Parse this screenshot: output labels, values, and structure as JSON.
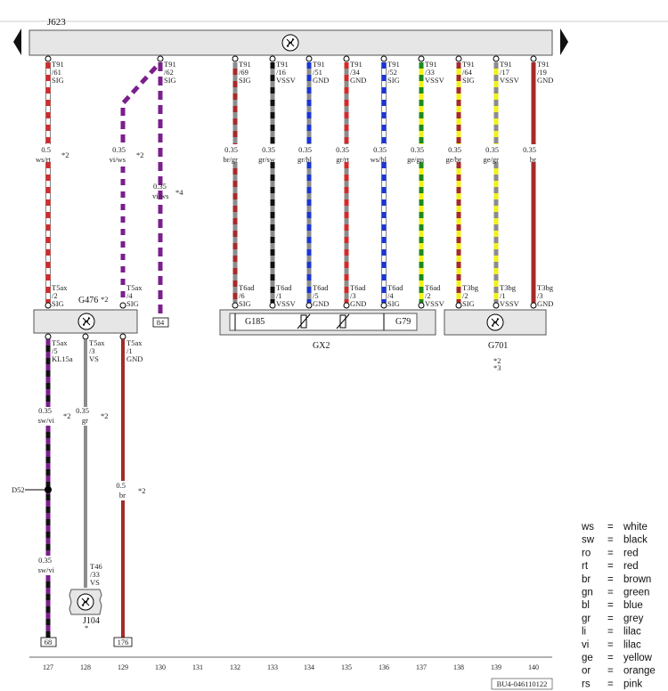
{
  "control_unit": {
    "label": "J623"
  },
  "columns": [
    "127",
    "128",
    "129",
    "130",
    "131",
    "132",
    "133",
    "134",
    "135",
    "136",
    "137",
    "138",
    "139",
    "140"
  ],
  "pins": [
    {
      "col": "127",
      "conn": "T91",
      "pin": "/61",
      "sig": "SIG"
    },
    {
      "col": "130",
      "conn": "T91",
      "pin": "/62",
      "sig": "SIG"
    },
    {
      "col": "132",
      "conn": "T91",
      "pin": "/69",
      "sig": "SIG"
    },
    {
      "col": "133",
      "conn": "T91",
      "pin": "/16",
      "sig": "VSSV"
    },
    {
      "col": "134",
      "conn": "T91",
      "pin": "/51",
      "sig": "GND"
    },
    {
      "col": "135",
      "conn": "T91",
      "pin": "/34",
      "sig": "GND"
    },
    {
      "col": "136",
      "conn": "T91",
      "pin": "/52",
      "sig": "SIG"
    },
    {
      "col": "137",
      "conn": "T91",
      "pin": "/33",
      "sig": "VSSV"
    },
    {
      "col": "138",
      "conn": "T91",
      "pin": "/64",
      "sig": "SIG"
    },
    {
      "col": "139",
      "conn": "T91",
      "pin": "/17",
      "sig": "VSSV"
    },
    {
      "col": "140",
      "conn": "T91",
      "pin": "/19",
      "sig": "GND"
    }
  ],
  "upper_wires": [
    {
      "col": "127",
      "size": "0.5",
      "color": "ws/rt",
      "note": "*2"
    },
    {
      "col": "129",
      "size": "0.35",
      "color": "vi/ws",
      "note": "*2"
    },
    {
      "col": "132",
      "size": "0.35",
      "color": "br/gr",
      "note": ""
    },
    {
      "col": "133",
      "size": "0.35",
      "color": "gr/sw",
      "note": ""
    },
    {
      "col": "134",
      "size": "0.35",
      "color": "gr/bl",
      "note": ""
    },
    {
      "col": "135",
      "size": "0.35",
      "color": "gr/rt",
      "note": ""
    },
    {
      "col": "136",
      "size": "0.35",
      "color": "ws/bl",
      "note": ""
    },
    {
      "col": "137",
      "size": "0.35",
      "color": "ge/gn",
      "note": ""
    },
    {
      "col": "138",
      "size": "0.35",
      "color": "ge/br",
      "note": ""
    },
    {
      "col": "139",
      "size": "0.35",
      "color": "ge/gr",
      "note": ""
    },
    {
      "col": "140",
      "size": "0.35",
      "color": "br",
      "note": ""
    }
  ],
  "dashed_wire": {
    "size": "0.35",
    "color": "vi/ws",
    "note": "*4",
    "terminal": "84"
  },
  "sensor_pins": [
    {
      "col": "127",
      "conn": "T5ax",
      "pin": "/2",
      "sig": "SIG"
    },
    {
      "col": "129",
      "conn": "T5ax",
      "pin": "/4",
      "sig": "SIG"
    },
    {
      "col": "132",
      "conn": "T6ad",
      "pin": "/6",
      "sig": "SIG"
    },
    {
      "col": "133",
      "conn": "T6ad",
      "pin": "/1",
      "sig": "VSSV"
    },
    {
      "col": "134",
      "conn": "T6ad",
      "pin": "/5",
      "sig": "GND"
    },
    {
      "col": "135",
      "conn": "T6ad",
      "pin": "/3",
      "sig": "GND"
    },
    {
      "col": "136",
      "conn": "T6ad",
      "pin": "/4",
      "sig": "SIG"
    },
    {
      "col": "137",
      "conn": "T6ad",
      "pin": "/2",
      "sig": "VSSV"
    },
    {
      "col": "138",
      "conn": "T3bg",
      "pin": "/2",
      "sig": "SIG"
    },
    {
      "col": "139",
      "conn": "T3bg",
      "pin": "/1",
      "sig": "VSSV"
    },
    {
      "col": "140",
      "conn": "T3bg",
      "pin": "/3",
      "sig": "GND"
    }
  ],
  "components": {
    "g476": {
      "label": "G476",
      "note": "*2"
    },
    "gx2": {
      "label": "GX2"
    },
    "g185": {
      "label": "G185"
    },
    "g79": {
      "label": "G79"
    },
    "g701": {
      "label": "G701",
      "note1": "*2",
      "note2": "*3"
    },
    "j104": {
      "label": "J104",
      "note": "*"
    }
  },
  "lower_pins": [
    {
      "col": "127",
      "conn": "T5ax",
      "pin": "/5",
      "sig": "KL15a"
    },
    {
      "col": "128",
      "conn": "T5ax",
      "pin": "/3",
      "sig": "VS"
    },
    {
      "col": "129",
      "conn": "T5ax",
      "pin": "/1",
      "sig": "GND"
    }
  ],
  "lower_wires": [
    {
      "col": "127",
      "size": "0.35",
      "color": "sw/vi",
      "note": "*2"
    },
    {
      "col": "128",
      "size": "0.35",
      "color": "gr",
      "note": "*2"
    },
    {
      "col": "129",
      "size": "0.5",
      "color": "br",
      "note": "*2"
    },
    {
      "col": "127",
      "size": "0.35",
      "color": "sw/vi",
      "note": ""
    }
  ],
  "j104_pin": {
    "conn": "T46",
    "pin": "/33",
    "sig": "VS"
  },
  "splice": {
    "label": "D52"
  },
  "terminals": {
    "t127": "68",
    "t129": "176"
  },
  "drawing_number": "BU4-046110122",
  "legend": [
    {
      "abbr": "ws",
      "eq": "=",
      "name": "white"
    },
    {
      "abbr": "sw",
      "eq": "=",
      "name": "black"
    },
    {
      "abbr": "ro",
      "eq": "=",
      "name": "red"
    },
    {
      "abbr": "rt",
      "eq": "=",
      "name": "red"
    },
    {
      "abbr": "br",
      "eq": "=",
      "name": "brown"
    },
    {
      "abbr": "gn",
      "eq": "=",
      "name": "green"
    },
    {
      "abbr": "bl",
      "eq": "=",
      "name": "blue"
    },
    {
      "abbr": "gr",
      "eq": "=",
      "name": "grey"
    },
    {
      "abbr": "li",
      "eq": "=",
      "name": "lilac"
    },
    {
      "abbr": "vi",
      "eq": "=",
      "name": "lilac"
    },
    {
      "abbr": "ge",
      "eq": "=",
      "name": "yellow"
    },
    {
      "abbr": "or",
      "eq": "=",
      "name": "orange"
    },
    {
      "abbr": "rs",
      "eq": "=",
      "name": "pink"
    }
  ],
  "colors": {
    "ws": "#ffffff",
    "sw": "#111111",
    "rt": "#d42a2a",
    "br": "#a52a2a",
    "gr": "#8c8c8c",
    "bl": "#1a35d6",
    "gn": "#1e8a1e",
    "ge": "#f2f21a",
    "vi": "#7a1f8c"
  }
}
